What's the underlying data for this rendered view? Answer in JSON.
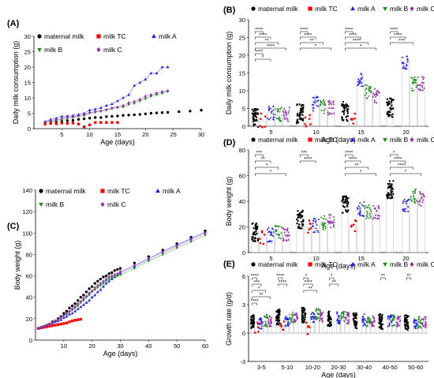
{
  "colors": {
    "maternal milk": "#000000",
    "milk TC": "#ff0000",
    "milk A": "#1a1aff",
    "milk B": "#1a8f1a",
    "milk C": "#9b2fae"
  },
  "chart_data": [
    {
      "id": "A",
      "panel_label": "(A)",
      "type": "line",
      "xlabel": "Age (days)",
      "ylabel": "Daily milk consumption (g)",
      "xlim": [
        0,
        30
      ],
      "ylim": [
        0,
        30
      ],
      "xticks": [
        5,
        10,
        15,
        20,
        25,
        30
      ],
      "yticks": [
        0,
        5,
        10,
        15,
        20,
        25,
        30
      ],
      "legend": "top",
      "series": [
        {
          "name": "maternal milk",
          "marker": "circle",
          "x": [
            2,
            3,
            4,
            5,
            6,
            7,
            8,
            9,
            10,
            11,
            12,
            13,
            14,
            15,
            16,
            17,
            18,
            19,
            20,
            21,
            22,
            23,
            24,
            26,
            28,
            30
          ],
          "y": [
            1.8,
            2,
            2.2,
            2.4,
            2.6,
            2.7,
            3,
            3.2,
            3.4,
            3.6,
            3.6,
            3.9,
            4,
            4.1,
            4.3,
            4.4,
            4.5,
            4.6,
            4.8,
            5,
            5.1,
            5.2,
            5.3,
            5.5,
            5.7,
            6
          ]
        },
        {
          "name": "milk TC",
          "marker": "square",
          "x": [
            2,
            3,
            4,
            5,
            6,
            7,
            8,
            9,
            10,
            11,
            12,
            13,
            14,
            15
          ],
          "y": [
            1.5,
            1.7,
            1.6,
            1.8,
            1.7,
            1.8,
            1.5,
            0.6,
            1.2,
            2,
            2,
            2,
            2,
            2
          ]
        },
        {
          "name": "milk A",
          "marker": "triangle",
          "x": [
            2,
            3,
            4,
            5,
            6,
            7,
            8,
            9,
            10,
            11,
            12,
            13,
            14,
            15,
            16,
            17,
            18,
            19,
            20,
            21,
            22,
            23,
            24
          ],
          "y": [
            2.3,
            3,
            3.4,
            4,
            4.1,
            4.3,
            4.6,
            5,
            6,
            6.3,
            6.8,
            7.5,
            8,
            9,
            10,
            11,
            14,
            15,
            16,
            18,
            18,
            20,
            20
          ]
        },
        {
          "name": "milk B",
          "marker": "down-triangle",
          "x": [
            2,
            3,
            4,
            5,
            6,
            7,
            8,
            9,
            10,
            11,
            12,
            13,
            14,
            15,
            16,
            17,
            18,
            19,
            20,
            21,
            22,
            23,
            24
          ],
          "y": [
            2,
            2.4,
            2.6,
            3,
            3.4,
            3.6,
            4,
            4.2,
            5,
            5.3,
            5.6,
            6,
            6.5,
            6.8,
            7,
            7.8,
            8.2,
            9,
            9.7,
            10.5,
            11,
            11.5,
            12
          ]
        },
        {
          "name": "milk C",
          "marker": "diamond",
          "x": [
            2,
            3,
            4,
            5,
            6,
            7,
            8,
            9,
            10,
            11,
            12,
            13,
            14,
            15,
            16,
            17,
            18,
            19,
            20,
            21,
            22,
            23,
            24
          ],
          "y": [
            2.2,
            2.6,
            2.9,
            3.2,
            3.6,
            3.9,
            4.2,
            4.5,
            5.2,
            5.5,
            5.8,
            6.2,
            6.7,
            7,
            7.5,
            8.4,
            8.8,
            9.5,
            10.5,
            11,
            11.6,
            12,
            12.3
          ]
        }
      ]
    },
    {
      "id": "B",
      "panel_label": "(B)",
      "type": "bar",
      "xlabel": "Age (days)",
      "ylabel": "Daily milk consumption (g)",
      "categories": [
        "5",
        "10",
        "15",
        "20"
      ],
      "ylim": [
        0,
        30
      ],
      "yticks": [
        0,
        5,
        10,
        15,
        20,
        25,
        30
      ],
      "legend": "top",
      "series": [
        {
          "name": "maternal milk",
          "values": [
            2.5,
            3.5,
            4.2,
            5.2
          ]
        },
        {
          "name": "milk TC",
          "values": [
            1.5,
            1.2,
            2.0,
            0
          ]
        },
        {
          "name": "milk A",
          "values": [
            4.0,
            6.5,
            13.0,
            18.0
          ]
        },
        {
          "name": "milk B",
          "values": [
            3.2,
            5.5,
            9.5,
            12.0
          ]
        },
        {
          "name": "milk C",
          "values": [
            3.2,
            5.2,
            8.5,
            12.0
          ]
        }
      ],
      "significance": [
        {
          "group": "5",
          "labels": [
            "****",
            "****",
            "**",
            "****",
            "****",
            "*"
          ]
        },
        {
          "group": "10",
          "labels": [
            "****",
            "****",
            "**",
            "*"
          ]
        },
        {
          "group": "15",
          "labels": [
            "****",
            "****",
            "****",
            "*"
          ]
        },
        {
          "group": "20",
          "labels": [
            "****",
            "****",
            "***"
          ]
        }
      ]
    },
    {
      "id": "C",
      "panel_label": "(C)",
      "type": "line",
      "xlabel": "Age (days)",
      "ylabel": "Body weight (g)",
      "xlim": [
        0,
        60
      ],
      "ylim": [
        0,
        140
      ],
      "xticks": [
        10,
        20,
        30,
        40,
        50,
        60
      ],
      "yticks": [
        0,
        20,
        40,
        60,
        80,
        100,
        120,
        140
      ],
      "legend": "top",
      "series": [
        {
          "name": "maternal milk",
          "marker": "circle",
          "x": [
            1,
            2,
            3,
            4,
            5,
            6,
            7,
            8,
            9,
            10,
            11,
            12,
            13,
            14,
            15,
            16,
            17,
            18,
            19,
            20,
            21,
            22,
            23,
            24,
            25,
            26,
            27,
            28,
            29,
            30,
            35,
            40,
            45,
            50,
            55,
            60
          ],
          "y": [
            11,
            12,
            13,
            14,
            15,
            17,
            18,
            20,
            22,
            25,
            27,
            30,
            32,
            34,
            37,
            40,
            42,
            45,
            48,
            50,
            53,
            55,
            57,
            59,
            60,
            62,
            63,
            65,
            66,
            67,
            72,
            78,
            84,
            90,
            96,
            102
          ]
        },
        {
          "name": "milk TC",
          "marker": "square",
          "x": [
            1,
            2,
            3,
            4,
            5,
            6,
            7,
            8,
            9,
            10,
            11,
            12,
            13,
            14,
            15,
            16
          ],
          "y": [
            11,
            11.5,
            12,
            12.5,
            13,
            13.5,
            14,
            14.5,
            15,
            15.5,
            16,
            17,
            18,
            18.5,
            19,
            19.5
          ]
        },
        {
          "name": "milk A",
          "marker": "triangle",
          "x": [
            1,
            2,
            3,
            4,
            5,
            6,
            7,
            8,
            9,
            10,
            11,
            12,
            13,
            14,
            15,
            16,
            17,
            18,
            19,
            20,
            21,
            22,
            23,
            24,
            25,
            26,
            27,
            28,
            29,
            30,
            35,
            40,
            45,
            50,
            55,
            60
          ],
          "y": [
            11,
            12,
            13,
            14,
            15,
            16,
            17,
            18,
            19,
            21,
            22,
            24,
            25,
            27,
            29,
            31,
            33,
            35,
            37,
            40,
            42,
            45,
            47,
            50,
            53,
            55,
            57,
            59,
            61,
            63,
            69,
            76,
            83,
            89,
            95,
            101
          ]
        },
        {
          "name": "milk B",
          "marker": "down-triangle",
          "x": [
            1,
            2,
            3,
            4,
            5,
            6,
            7,
            8,
            9,
            10,
            11,
            12,
            13,
            14,
            15,
            16,
            17,
            18,
            19,
            20,
            21,
            22,
            23,
            24,
            25,
            26,
            27,
            28,
            29,
            30,
            35,
            40,
            45,
            50,
            55,
            60
          ],
          "y": [
            11,
            12,
            13,
            14,
            15,
            16,
            18,
            19,
            21,
            23,
            24,
            26,
            28,
            30,
            32,
            35,
            37,
            40,
            42,
            45,
            47,
            49,
            51,
            53,
            55,
            57,
            58,
            59,
            60,
            61,
            67,
            74,
            80,
            86,
            92,
            98
          ]
        },
        {
          "name": "milk C",
          "marker": "diamond",
          "x": [
            1,
            2,
            3,
            4,
            5,
            6,
            7,
            8,
            9,
            10,
            11,
            12,
            13,
            14,
            15,
            16,
            17,
            18,
            19,
            20,
            21,
            22,
            23,
            24,
            25,
            26,
            27,
            28,
            29,
            30,
            35,
            40,
            45,
            50,
            55,
            60
          ],
          "y": [
            11,
            12,
            13,
            14,
            15,
            16,
            18,
            19,
            21,
            23,
            25,
            27,
            29,
            31,
            34,
            36,
            39,
            41,
            44,
            46,
            49,
            51,
            53,
            55,
            57,
            59,
            60,
            61,
            62,
            64,
            70,
            76,
            82,
            88,
            94,
            100
          ]
        }
      ]
    },
    {
      "id": "D",
      "panel_label": "(D)",
      "type": "bar",
      "xlabel": "Age (days)",
      "ylabel": "Body weight (g)",
      "categories": [
        "5",
        "10",
        "15",
        "20"
      ],
      "ylim": [
        0,
        80
      ],
      "yticks": [
        0,
        20,
        40,
        60,
        80
      ],
      "legend": "top",
      "series": [
        {
          "name": "maternal milk",
          "values": [
            16,
            26,
            38,
            49
          ]
        },
        {
          "name": "milk TC",
          "values": [
            12,
            20,
            20,
            0
          ]
        },
        {
          "name": "milk A",
          "values": [
            14,
            21,
            34,
            36
          ]
        },
        {
          "name": "milk B",
          "values": [
            16,
            23,
            32,
            44
          ]
        },
        {
          "name": "milk C",
          "values": [
            14,
            24,
            31,
            42
          ]
        }
      ],
      "significance": [
        {
          "group": "5",
          "labels": [
            "***",
            "**",
            "*",
            "*"
          ]
        },
        {
          "group": "10",
          "labels": [
            "***",
            "****"
          ]
        },
        {
          "group": "15",
          "labels": [
            "****",
            "****",
            "**",
            "*"
          ]
        },
        {
          "group": "20",
          "labels": [
            "*",
            "****",
            "****",
            "*"
          ]
        }
      ]
    },
    {
      "id": "E",
      "panel_label": "(E)",
      "type": "bar",
      "xlabel": "Age (days)",
      "ylabel": "Growth rate (g/d)",
      "categories": [
        "3-5",
        "5-10",
        "10-20",
        "20-30",
        "30-40",
        "40-50",
        "50-60"
      ],
      "ylim": [
        -3,
        6
      ],
      "yticks": [
        -3,
        0,
        3,
        6
      ],
      "legend": "top",
      "series": [
        {
          "name": "maternal milk",
          "values": [
            1.2,
            1.7,
            1.9,
            1.5,
            1.3,
            1.2,
            1.1
          ]
        },
        {
          "name": "milk TC",
          "values": [
            0.5,
            0.6,
            0.5,
            0,
            0,
            0,
            0
          ]
        },
        {
          "name": "milk A",
          "values": [
            1.0,
            1.2,
            1.6,
            1.6,
            1.4,
            1.3,
            1.1
          ]
        },
        {
          "name": "milk B",
          "values": [
            1.3,
            1.6,
            2.0,
            1.7,
            1.3,
            1.3,
            1.1
          ]
        },
        {
          "name": "milk C",
          "values": [
            1.2,
            1.5,
            1.8,
            1.6,
            1.3,
            1.2,
            1.1
          ]
        }
      ],
      "significance": [
        {
          "group": "3-5",
          "labels": [
            "****",
            "***",
            "*",
            "**",
            "****"
          ]
        },
        {
          "group": "5-10",
          "labels": [
            "****",
            "****"
          ]
        },
        {
          "group": "10-20",
          "labels": [
            "*",
            "****",
            "**"
          ]
        },
        {
          "group": "20-30",
          "labels": [
            "*",
            "**"
          ]
        },
        {
          "group": "40-50",
          "labels": [
            "**"
          ]
        },
        {
          "group": "50-60",
          "labels": [
            "**"
          ]
        }
      ]
    }
  ]
}
